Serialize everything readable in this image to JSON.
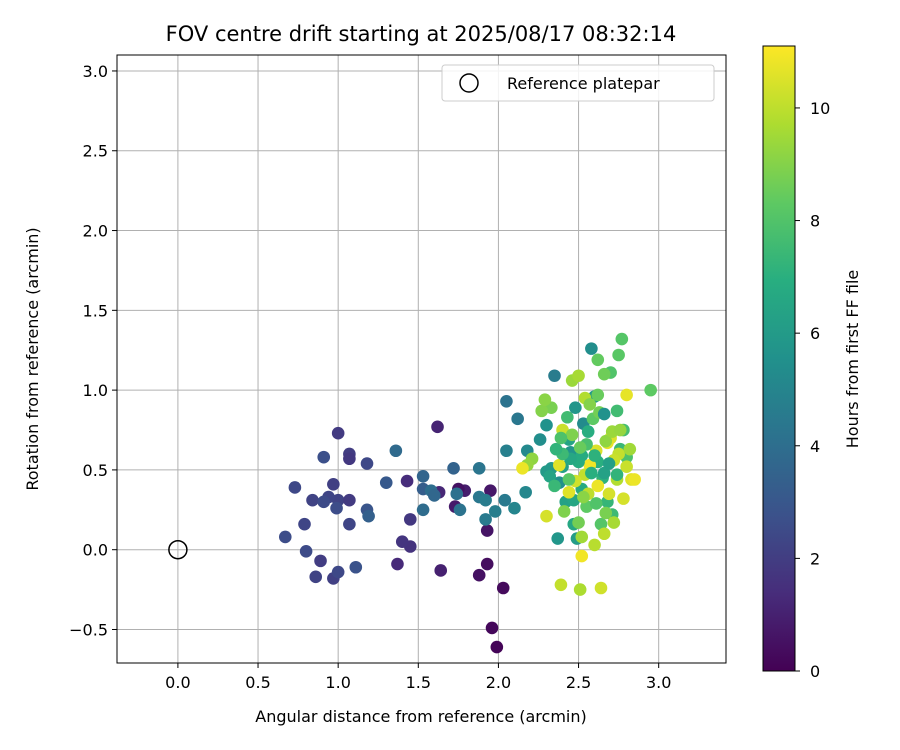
{
  "chart_data": {
    "type": "scatter",
    "title": "FOV centre drift starting at 2025/08/17 08:32:14",
    "xlabel": "Angular distance from reference (arcmin)",
    "ylabel": "Rotation from reference (arcmin)",
    "xlim": [
      -0.38,
      3.42
    ],
    "ylim": [
      -0.71,
      3.1
    ],
    "xticks": [
      0.0,
      0.5,
      1.0,
      1.5,
      2.0,
      2.5,
      3.0
    ],
    "xtick_labels": [
      "0.0",
      "0.5",
      "1.0",
      "1.5",
      "2.0",
      "2.5",
      "3.0"
    ],
    "yticks": [
      -0.5,
      0.0,
      0.5,
      1.0,
      1.5,
      2.0,
      2.5,
      3.0
    ],
    "ytick_labels": [
      "−0.5",
      "0.0",
      "0.5",
      "1.0",
      "1.5",
      "2.0",
      "2.5",
      "3.0"
    ],
    "grid": true,
    "legend": {
      "placement": "upper-right",
      "entries": [
        "Reference platepar"
      ]
    },
    "reference_point": {
      "name": "Reference platepar",
      "x": 0.0,
      "y": 0.0
    },
    "colorbar": {
      "label": "Hours from first FF file",
      "colormap": "viridis",
      "min": 0,
      "max": 11.1,
      "ticks": [
        0,
        2,
        4,
        6,
        8,
        10
      ],
      "tick_labels": [
        "0",
        "2",
        "4",
        "6",
        "8",
        "10"
      ]
    },
    "series": [
      {
        "marker": "filled-circle",
        "points": [
          [
            1.99,
            -0.61,
            0.1
          ],
          [
            1.96,
            -0.49,
            0.2
          ],
          [
            2.03,
            -0.24,
            0.3
          ],
          [
            1.93,
            -0.09,
            0.4
          ],
          [
            1.88,
            -0.16,
            0.5
          ],
          [
            1.93,
            0.12,
            0.6
          ],
          [
            1.95,
            0.37,
            0.7
          ],
          [
            1.73,
            0.27,
            0.8
          ],
          [
            1.79,
            0.37,
            0.9
          ],
          [
            1.64,
            -0.13,
            1.0
          ],
          [
            1.62,
            0.77,
            1.1
          ],
          [
            1.63,
            0.36,
            1.2
          ],
          [
            1.75,
            0.38,
            0.5
          ],
          [
            1.43,
            0.43,
            1.4
          ],
          [
            1.37,
            -0.09,
            1.3
          ],
          [
            1.45,
            0.02,
            1.6
          ],
          [
            1.4,
            0.05,
            1.7
          ],
          [
            1.45,
            0.19,
            1.8
          ],
          [
            1.0,
            0.73,
            1.9
          ],
          [
            1.07,
            0.6,
            2.0
          ],
          [
            1.07,
            0.57,
            1.8
          ],
          [
            0.97,
            0.41,
            2.1
          ],
          [
            1.0,
            0.31,
            2.2
          ],
          [
            1.07,
            0.31,
            1.9
          ],
          [
            0.94,
            0.33,
            2.3
          ],
          [
            0.97,
            -0.18,
            2.1
          ],
          [
            1.0,
            -0.14,
            2.4
          ],
          [
            0.86,
            -0.17,
            2.2
          ],
          [
            0.89,
            -0.07,
            2.0
          ],
          [
            0.8,
            -0.01,
            2.5
          ],
          [
            0.79,
            0.16,
            2.3
          ],
          [
            0.67,
            0.08,
            2.6
          ],
          [
            0.73,
            0.39,
            2.4
          ],
          [
            0.84,
            0.31,
            2.2
          ],
          [
            0.91,
            0.3,
            2.5
          ],
          [
            0.91,
            0.58,
            2.7
          ],
          [
            1.07,
            0.16,
            2.3
          ],
          [
            1.11,
            -0.11,
            2.8
          ],
          [
            0.99,
            0.26,
            2.6
          ],
          [
            1.18,
            0.54,
            2.4
          ],
          [
            1.18,
            0.25,
            2.9
          ],
          [
            1.19,
            0.21,
            3.4
          ],
          [
            1.3,
            0.42,
            3.1
          ],
          [
            1.36,
            0.62,
            3.8
          ],
          [
            1.53,
            0.46,
            3.6
          ],
          [
            1.53,
            0.38,
            3.3
          ],
          [
            1.53,
            0.25,
            3.9
          ],
          [
            1.58,
            0.37,
            4.0
          ],
          [
            1.6,
            0.34,
            3.7
          ],
          [
            1.74,
            0.35,
            4.1
          ],
          [
            1.72,
            0.51,
            3.5
          ],
          [
            1.76,
            0.25,
            4.2
          ],
          [
            1.88,
            0.51,
            4.3
          ],
          [
            1.88,
            0.33,
            4.4
          ],
          [
            1.92,
            0.19,
            4.5
          ],
          [
            1.92,
            0.31,
            4.6
          ],
          [
            1.98,
            0.24,
            4.7
          ],
          [
            2.04,
            0.31,
            4.5
          ],
          [
            2.05,
            0.93,
            4.2
          ],
          [
            2.05,
            0.62,
            4.8
          ],
          [
            2.1,
            0.26,
            5.0
          ],
          [
            2.12,
            0.82,
            4.4
          ],
          [
            2.17,
            0.36,
            5.1
          ],
          [
            2.18,
            0.62,
            5.2
          ],
          [
            2.26,
            0.69,
            5.4
          ],
          [
            2.3,
            0.78,
            5.6
          ],
          [
            2.35,
            1.09,
            4.6
          ],
          [
            2.37,
            0.07,
            5.8
          ],
          [
            2.38,
            0.42,
            5.5
          ],
          [
            2.3,
            0.49,
            6.0
          ],
          [
            2.33,
            0.51,
            5.9
          ],
          [
            2.4,
            0.52,
            6.2
          ],
          [
            2.42,
            0.3,
            6.3
          ],
          [
            2.45,
            0.61,
            5.7
          ],
          [
            2.44,
            0.69,
            6.4
          ],
          [
            2.47,
            0.31,
            6.5
          ],
          [
            2.47,
            0.16,
            6.6
          ],
          [
            2.49,
            0.07,
            6.1
          ],
          [
            2.52,
            0.38,
            6.7
          ],
          [
            2.52,
            0.59,
            6.8
          ],
          [
            2.53,
            0.79,
            5.3
          ],
          [
            2.56,
            0.74,
            6.9
          ],
          [
            2.58,
            1.26,
            5.4
          ],
          [
            2.6,
            0.96,
            6.0
          ],
          [
            2.62,
            0.55,
            7.0
          ],
          [
            2.65,
            0.45,
            7.1
          ],
          [
            2.66,
            0.48,
            6.3
          ],
          [
            2.68,
            0.3,
            7.3
          ],
          [
            2.71,
            0.22,
            7.5
          ],
          [
            2.74,
            0.87,
            7.6
          ],
          [
            2.76,
            0.63,
            7.4
          ],
          [
            2.78,
            0.75,
            7.7
          ],
          [
            2.8,
            0.58,
            7.9
          ],
          [
            2.77,
            1.32,
            8.1
          ],
          [
            2.75,
            1.22,
            8.2
          ],
          [
            2.95,
            1.0,
            8.3
          ],
          [
            2.7,
            1.11,
            8.0
          ],
          [
            2.62,
            1.19,
            8.4
          ],
          [
            2.66,
            1.1,
            8.6
          ],
          [
            2.62,
            0.97,
            8.5
          ],
          [
            2.64,
            0.16,
            8.1
          ],
          [
            2.67,
            0.23,
            8.8
          ],
          [
            2.55,
            0.27,
            8.3
          ],
          [
            2.5,
            0.17,
            8.7
          ],
          [
            2.41,
            0.24,
            8.9
          ],
          [
            2.33,
            0.89,
            8.8
          ],
          [
            2.27,
            0.87,
            9.0
          ],
          [
            2.29,
            0.94,
            9.1
          ],
          [
            2.21,
            0.57,
            9.2
          ],
          [
            2.18,
            0.53,
            9.3
          ],
          [
            2.15,
            0.51,
            10.8
          ],
          [
            2.3,
            0.21,
            10.4
          ],
          [
            2.38,
            0.53,
            10.6
          ],
          [
            2.4,
            0.75,
            10.2
          ],
          [
            2.46,
            1.06,
            9.4
          ],
          [
            2.5,
            1.09,
            9.6
          ],
          [
            2.54,
            0.95,
            9.8
          ],
          [
            2.52,
            0.08,
            9.5
          ],
          [
            2.51,
            -0.25,
            9.7
          ],
          [
            2.39,
            -0.22,
            10.1
          ],
          [
            2.52,
            -0.04,
            10.9
          ],
          [
            2.6,
            0.03,
            9.9
          ],
          [
            2.64,
            -0.24,
            10.3
          ],
          [
            2.66,
            0.1,
            10.0
          ],
          [
            2.72,
            0.17,
            9.6
          ],
          [
            2.78,
            0.32,
            10.4
          ],
          [
            2.83,
            0.44,
            10.6
          ],
          [
            2.85,
            0.44,
            10.8
          ],
          [
            2.75,
            0.6,
            10.1
          ],
          [
            2.7,
            0.7,
            10.5
          ],
          [
            2.72,
            0.56,
            10.2
          ],
          [
            2.68,
            0.67,
            10.7
          ],
          [
            2.61,
            0.62,
            10.5
          ],
          [
            2.57,
            0.53,
            10.9
          ],
          [
            2.54,
            0.47,
            10.1
          ],
          [
            2.48,
            0.43,
            10.3
          ],
          [
            2.44,
            0.36,
            10.6
          ],
          [
            2.56,
            0.35,
            10.0
          ],
          [
            2.62,
            0.4,
            10.8
          ],
          [
            2.69,
            0.35,
            10.4
          ],
          [
            2.74,
            0.44,
            9.8
          ],
          [
            2.8,
            0.52,
            10.2
          ],
          [
            2.82,
            0.63,
            9.5
          ],
          [
            2.8,
            0.97,
            10.7
          ],
          [
            2.74,
            0.47,
            7.2
          ],
          [
            2.58,
            0.48,
            7.0
          ],
          [
            2.5,
            0.55,
            6.8
          ],
          [
            2.45,
            0.57,
            6.6
          ],
          [
            2.4,
            0.6,
            7.5
          ],
          [
            2.36,
            0.63,
            7.2
          ],
          [
            2.32,
            0.46,
            6.4
          ],
          [
            2.55,
            0.66,
            7.8
          ],
          [
            2.59,
            0.82,
            8.3
          ],
          [
            2.63,
            0.86,
            8.7
          ],
          [
            2.67,
            0.68,
            9.2
          ],
          [
            2.71,
            0.74,
            9.4
          ],
          [
            2.46,
            0.72,
            8.9
          ],
          [
            2.43,
            0.83,
            7.6
          ],
          [
            2.48,
            0.89,
            5.8
          ],
          [
            2.57,
            0.91,
            9.0
          ],
          [
            2.35,
            0.4,
            7.4
          ],
          [
            2.61,
            0.29,
            8.0
          ],
          [
            2.69,
            0.54,
            6.2
          ],
          [
            2.76,
            0.75,
            9.3
          ],
          [
            2.51,
            0.64,
            8.5
          ],
          [
            2.39,
            0.7,
            7.9
          ],
          [
            2.66,
            0.85,
            5.6
          ],
          [
            2.53,
            0.33,
            9.1
          ],
          [
            2.44,
            0.44,
            8.2
          ],
          [
            2.6,
            0.59,
            7.1
          ]
        ]
      }
    ]
  }
}
